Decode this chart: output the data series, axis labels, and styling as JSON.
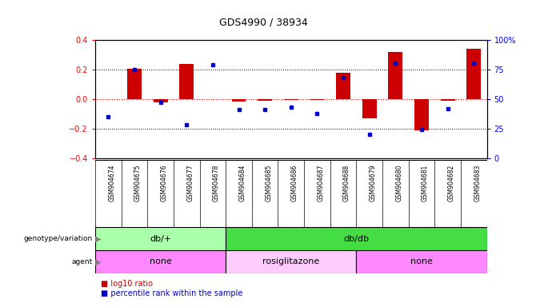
{
  "title": "GDS4990 / 38934",
  "samples": [
    "GSM904674",
    "GSM904675",
    "GSM904676",
    "GSM904677",
    "GSM904678",
    "GSM904684",
    "GSM904685",
    "GSM904686",
    "GSM904687",
    "GSM904688",
    "GSM904679",
    "GSM904680",
    "GSM904681",
    "GSM904682",
    "GSM904683"
  ],
  "log10_ratio": [
    0.0,
    0.205,
    -0.02,
    0.235,
    0.0,
    -0.015,
    -0.01,
    -0.005,
    -0.005,
    0.18,
    -0.13,
    0.32,
    -0.21,
    -0.01,
    0.34
  ],
  "percentile": [
    35,
    75,
    47,
    28,
    79,
    41,
    41,
    43,
    38,
    68,
    20,
    80,
    24,
    42,
    80
  ],
  "ylim_left": [
    -0.4,
    0.4
  ],
  "ylim_right": [
    0,
    100
  ],
  "bar_color": "#cc0000",
  "dot_color": "#0000cc",
  "background_color": "#ffffff",
  "genotype_groups": [
    {
      "label": "db/+",
      "start": 0,
      "end": 5,
      "color": "#aaffaa"
    },
    {
      "label": "db/db",
      "start": 5,
      "end": 15,
      "color": "#44dd44"
    }
  ],
  "agent_groups": [
    {
      "label": "none",
      "start": 0,
      "end": 5,
      "color": "#ff88ff"
    },
    {
      "label": "rosiglitazone",
      "start": 5,
      "end": 10,
      "color": "#ffccff"
    },
    {
      "label": "none",
      "start": 10,
      "end": 15,
      "color": "#ff88ff"
    }
  ],
  "legend_bar_color": "#cc0000",
  "legend_dot_color": "#0000cc",
  "legend_text1": "log10 ratio",
  "legend_text2": "percentile rank within the sample"
}
